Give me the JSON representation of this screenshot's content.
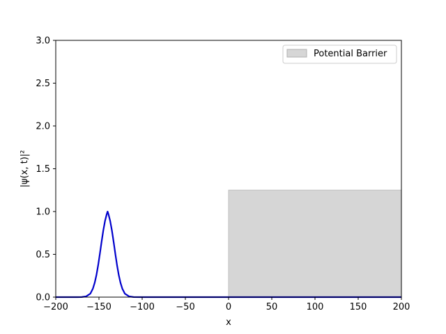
{
  "chart_data": {
    "type": "line",
    "title": "",
    "xlabel": "x",
    "ylabel": "|ψ(x, t)|²",
    "xlim": [
      -200,
      200
    ],
    "ylim": [
      0,
      3
    ],
    "x_ticks": [
      -200,
      -150,
      -100,
      -50,
      0,
      50,
      100,
      150,
      200
    ],
    "x_tick_labels": [
      "−200",
      "−150",
      "−100",
      "−50",
      "0",
      "50",
      "100",
      "150",
      "200"
    ],
    "y_ticks": [
      0,
      0.5,
      1,
      1.5,
      2,
      2.5,
      3
    ],
    "y_tick_labels": [
      "0.0",
      "0.5",
      "1.0",
      "1.5",
      "2.0",
      "2.5",
      "3.0"
    ],
    "grid": false,
    "legend_position": "top-right",
    "series": [
      {
        "type": "line",
        "color": "#0000cc",
        "x": [
          -200,
          -175,
          -170,
          -165,
          -160,
          -157,
          -155,
          -153,
          -151,
          -149,
          -147,
          -145,
          -143,
          -141,
          -140,
          -139,
          -137,
          -135,
          -133,
          -131,
          -129,
          -127,
          -125,
          -123,
          -120,
          -115,
          -110,
          -100,
          -50,
          0,
          50,
          100,
          150,
          200
        ],
        "y": [
          0,
          0,
          0.001,
          0.008,
          0.04,
          0.1,
          0.165,
          0.254,
          0.368,
          0.502,
          0.644,
          0.778,
          0.889,
          0.969,
          1.0,
          0.969,
          0.889,
          0.778,
          0.644,
          0.502,
          0.368,
          0.254,
          0.165,
          0.1,
          0.04,
          0.008,
          0.001,
          0,
          0,
          0,
          0,
          0,
          0,
          0
        ]
      },
      {
        "name": "Potential Barrier",
        "type": "area",
        "color": "#d6d6d6",
        "x_start": 0,
        "x_end": 200,
        "height": 1.25
      }
    ]
  }
}
